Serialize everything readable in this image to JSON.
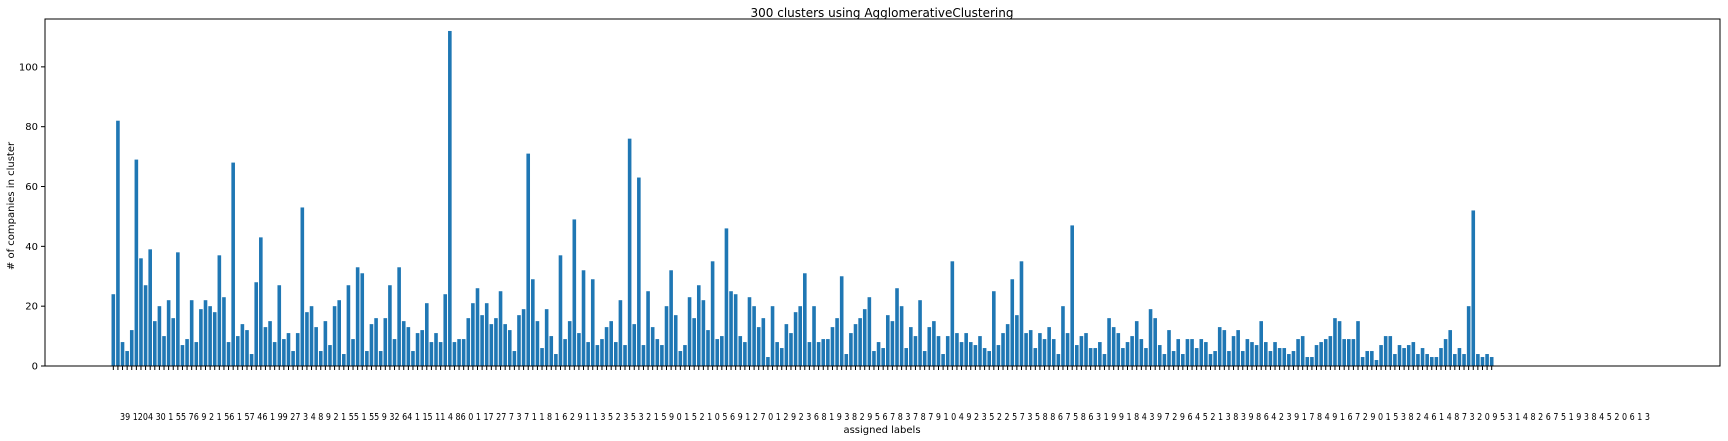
{
  "chart_data": {
    "type": "bar",
    "title": "300 clusters using AgglomerativeClustering",
    "xlabel": "assigned labels",
    "ylabel": "# of companies in cluster",
    "ylim": [
      0,
      116
    ],
    "yticks": [
      0,
      20,
      40,
      60,
      80,
      100
    ],
    "grid": false,
    "bar_color": "#1f77b4",
    "values": [
      24,
      82,
      8,
      5,
      12,
      69,
      36,
      27,
      39,
      15,
      20,
      10,
      22,
      16,
      38,
      7,
      9,
      22,
      8,
      19,
      22,
      20,
      18,
      37,
      23,
      8,
      68,
      10,
      14,
      12,
      4,
      28,
      43,
      13,
      15,
      8,
      27,
      9,
      11,
      5,
      11,
      53,
      18,
      20,
      13,
      5,
      15,
      7,
      20,
      22,
      4,
      27,
      9,
      33,
      31,
      5,
      14,
      16,
      5,
      16,
      27,
      9,
      33,
      15,
      13,
      5,
      11,
      12,
      21,
      8,
      11,
      8,
      24,
      112,
      8,
      9,
      9,
      16,
      21,
      26,
      17,
      21,
      14,
      16,
      25,
      14,
      12,
      5,
      17,
      19,
      71,
      29,
      15,
      6,
      19,
      10,
      4,
      37,
      9,
      15,
      49,
      11,
      32,
      8,
      29,
      7,
      9,
      13,
      15,
      8,
      22,
      7,
      76,
      14,
      63,
      7,
      25,
      13,
      9,
      7,
      20,
      32,
      17,
      5,
      7,
      23,
      16,
      27,
      22,
      12,
      35,
      9,
      10,
      46,
      25,
      24,
      10,
      8,
      23,
      20,
      13,
      16,
      3,
      20,
      8,
      6,
      14,
      11,
      18,
      20,
      31,
      8,
      20,
      8,
      9,
      9,
      13,
      16,
      30,
      4,
      11,
      14,
      16,
      19,
      23,
      5,
      8,
      6,
      17,
      15,
      26,
      20,
      6,
      13,
      10,
      22,
      5,
      13,
      15,
      10,
      4,
      10,
      35,
      11,
      8,
      11,
      8,
      7,
      10,
      6,
      5,
      25,
      7,
      11,
      14,
      29,
      17,
      35,
      11,
      12,
      6,
      11,
      9,
      13,
      9,
      4,
      20,
      11,
      47,
      7,
      10,
      11,
      6,
      6,
      8,
      4,
      16,
      13,
      11,
      6,
      8,
      10,
      15,
      9,
      6,
      19,
      16,
      7,
      4,
      12,
      5,
      9,
      4,
      9,
      9,
      6,
      9,
      8,
      4,
      5,
      13,
      12,
      5,
      10,
      12,
      5,
      9,
      8,
      7,
      15,
      8,
      5,
      8,
      6,
      6,
      4,
      5,
      9,
      10,
      3,
      3,
      7,
      8,
      9,
      10,
      16,
      15,
      9,
      9,
      9,
      15,
      3,
      5,
      5,
      2,
      7,
      10,
      10,
      4,
      7,
      6,
      7,
      8,
      4,
      6,
      4,
      3,
      3,
      6,
      9,
      12,
      4,
      6,
      4,
      20,
      52,
      4,
      3,
      4,
      3
    ],
    "x_tick_text": "39 1204 30 1 55 76 9 2 1 56 1 57 46 1 99 27 3 4 8 9 2 1 55 1 55 9 32 64 1 15 11 4 86 0 1 17 27 7 3 7 1 1 8 1 6 2 9 1 1 3 5 2 3 5 3 2 1 5 9 0 1 5 2 1 0 5 6 9 1 2 7 0 1 2 9 2 3 6 8 1 9 3 8 2 9 5 6 7 8 3 7 8 7 9 1 0 4 9 2 3 5 2 2 5 7 3 5 8 8 6 7 5 8 6 3 1 9 9 1 8 4 3 9 7 2 9 6 4 5 2 1 3 8 3 9 8 6 4 2 3 9 1 7 8 4 9 1 6 7 2 9 0 1 5 3 8 2 4 6 1 4 8 7 3 2 0 9 5 3 1 4 8 2 6 7 5 1 9 3 8 4 5 2 0 6 1 3"
  }
}
